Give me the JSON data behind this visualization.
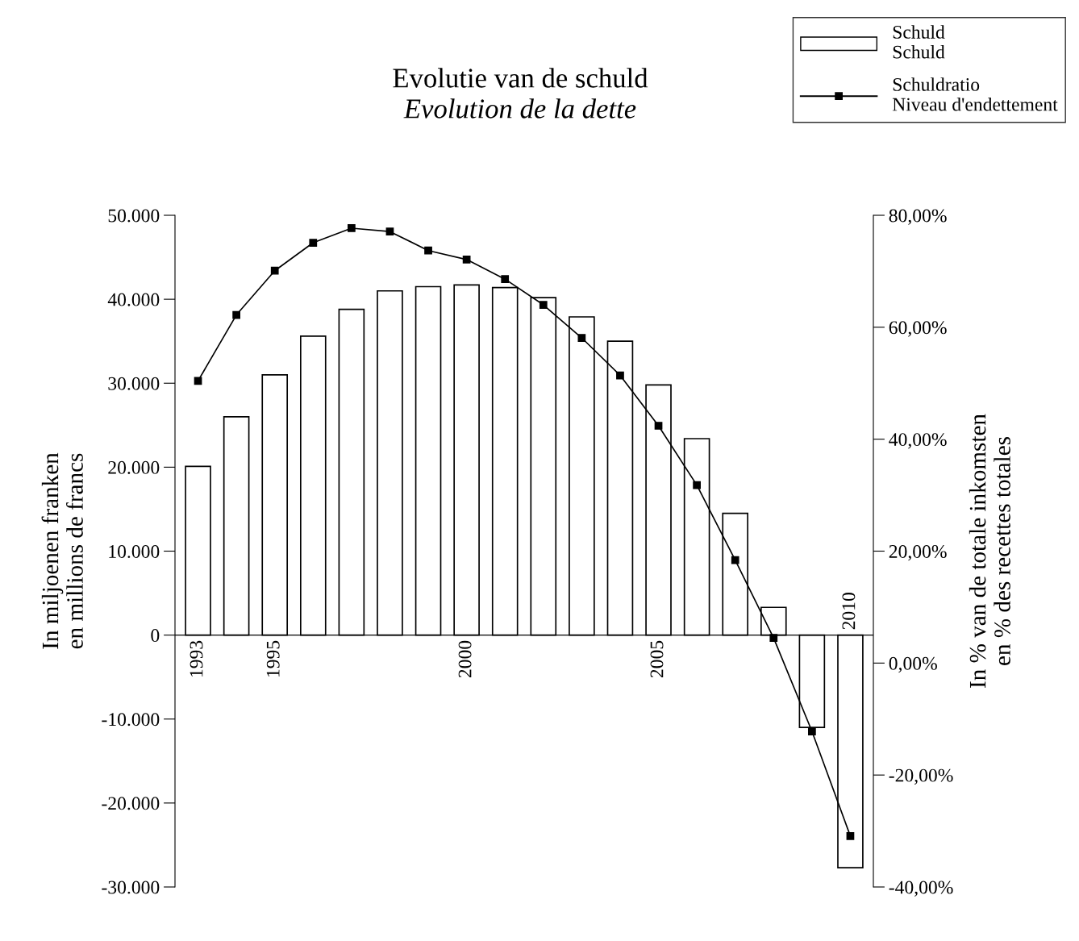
{
  "chart_data": {
    "type": "bar",
    "title": "Evolutie van de schuld",
    "subtitle": "Evolution de la dette",
    "ylabel": "In miljoenen franken\nen millions de francs",
    "y2label": "In % van de totale inkomsten\nen % des recettes totales",
    "categories": [
      "1993",
      null,
      "1995",
      null,
      null,
      null,
      null,
      "2000",
      null,
      null,
      null,
      null,
      "2005",
      null,
      null,
      null,
      null,
      "2010"
    ],
    "series": [
      {
        "name": "Schuld\nSchuld",
        "color": "#ffffff",
        "values": [
          20100,
          26000,
          31000,
          35600,
          38800,
          41000,
          41500,
          41700,
          41400,
          40200,
          37900,
          35000,
          29800,
          23400,
          14500,
          3300,
          -11000,
          -27700
        ]
      },
      {
        "name": "Schuldratio\nNiveau d'endettement",
        "type": "line",
        "axis": "y2",
        "color": "#000000",
        "marker": "square",
        "line_style": "solid",
        "values": [
          50.4,
          62.2,
          70.1,
          75.1,
          77.7,
          77.1,
          73.7,
          72.1,
          68.6,
          64.0,
          58.1,
          51.4,
          42.4,
          31.8,
          18.4,
          4.5,
          -12.2,
          -30.9
        ]
      }
    ],
    "ylim": [
      -30000,
      50000
    ],
    "yticks": [
      {
        "value": -30000,
        "label": "-30.000"
      },
      {
        "value": -20000,
        "label": "-20.000"
      },
      {
        "value": -10000,
        "label": "-10.000"
      },
      {
        "value": 0,
        "label": "0"
      },
      {
        "value": 10000,
        "label": "10.000"
      },
      {
        "value": 20000,
        "label": "20.000"
      },
      {
        "value": 30000,
        "label": "30.000"
      },
      {
        "value": 40000,
        "label": "40.000"
      },
      {
        "value": 50000,
        "label": "50.000"
      }
    ],
    "y2lim": [
      -40,
      80
    ],
    "y2ticks": [
      {
        "value": -40,
        "label": "-40,00%"
      },
      {
        "value": -20,
        "label": "-20,00%"
      },
      {
        "value": 0,
        "label": "0,00%"
      },
      {
        "value": 20,
        "label": "20,00%"
      },
      {
        "value": 40,
        "label": "40,00%"
      },
      {
        "value": 60,
        "label": "60,00%"
      },
      {
        "value": 80,
        "label": "80,00%"
      }
    ],
    "grid": false,
    "legend": "top right"
  }
}
